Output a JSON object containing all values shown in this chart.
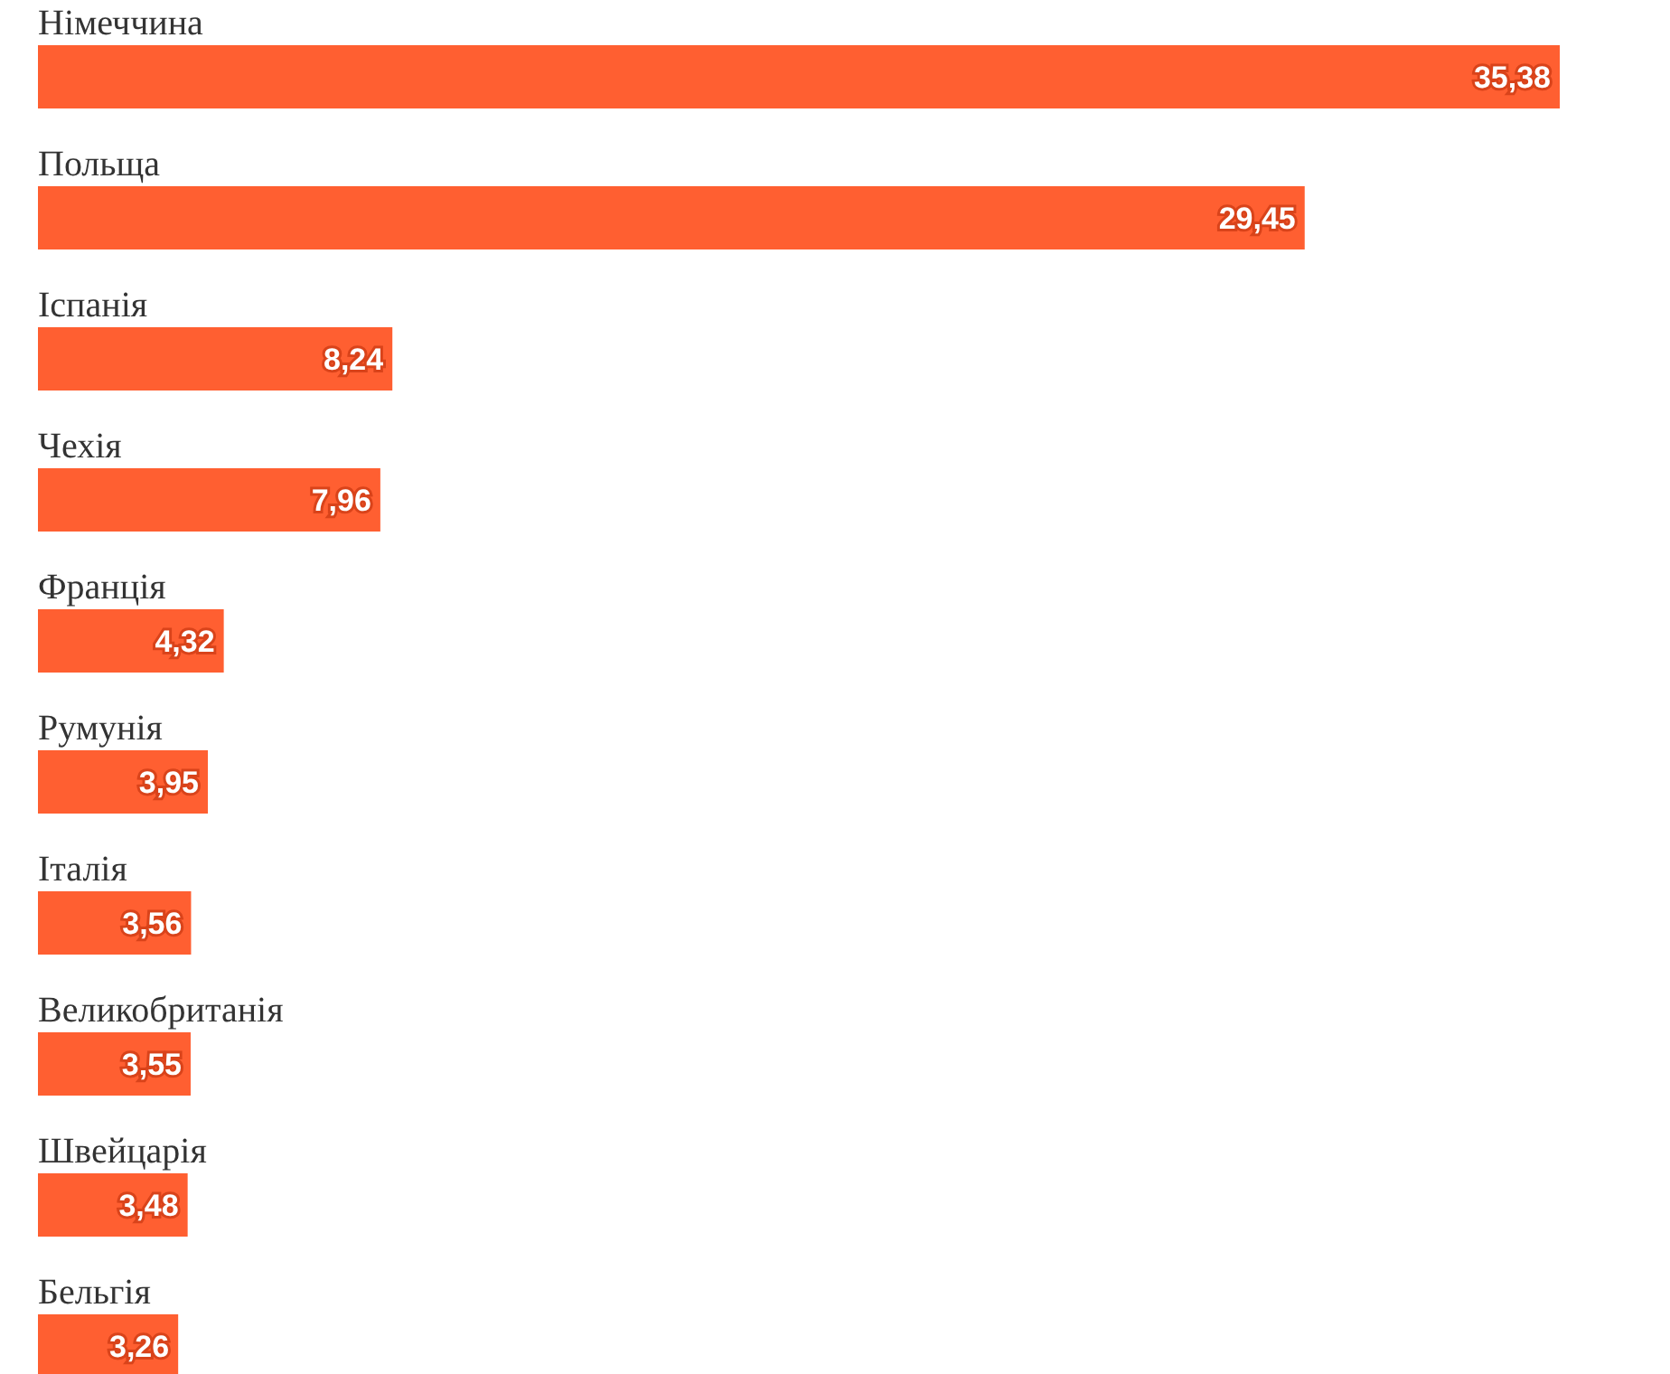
{
  "chart_data": {
    "type": "bar",
    "orientation": "horizontal",
    "categories": [
      "Німеччина",
      "Польща",
      "Іспанія",
      "Чехія",
      "Франція",
      "Румунія",
      "Італія",
      "Великобританія",
      "Швейцарія",
      "Бельгія"
    ],
    "values": [
      35.38,
      29.45,
      8.24,
      7.96,
      4.32,
      3.95,
      3.56,
      3.55,
      3.48,
      3.26
    ],
    "value_labels": [
      "35,38",
      "29,45",
      "8,24",
      "7,96",
      "4,32",
      "3,95",
      "3,56",
      "3,55",
      "3,48",
      "3,26"
    ],
    "color": "#ff5f31"
  }
}
